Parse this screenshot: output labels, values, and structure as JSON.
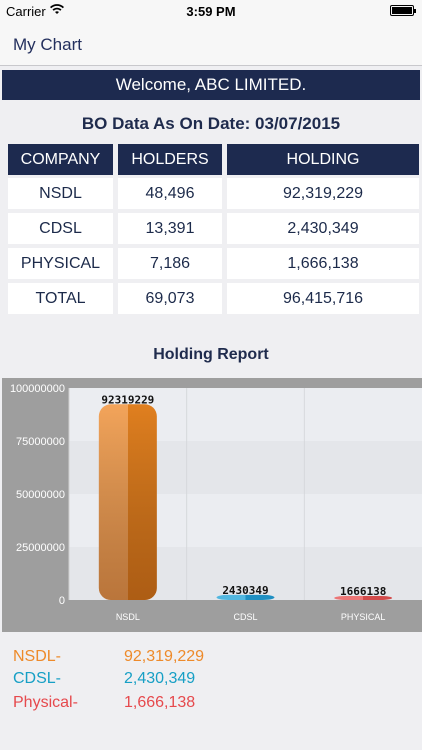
{
  "status_bar": {
    "carrier": "Carrier",
    "time": "3:59 PM"
  },
  "nav": {
    "title": "My Chart"
  },
  "welcome": "Welcome, ABC LIMITED.",
  "bo_date": "BO Data As On Date: 03/07/2015",
  "table": {
    "headers": [
      "COMPANY",
      "HOLDERS",
      "HOLDING"
    ],
    "rows": [
      [
        "NSDL",
        "48,496",
        "92,319,229"
      ],
      [
        "CDSL",
        "13,391",
        "2,430,349"
      ],
      [
        "PHYSICAL",
        "7,186",
        "1,666,138"
      ],
      [
        "TOTAL",
        "69,073",
        "96,415,716"
      ]
    ]
  },
  "report_title": "Holding Report",
  "chart_data": {
    "type": "bar",
    "categories": [
      "NSDL",
      "CDSL",
      "PHYSICAL"
    ],
    "values": [
      92319229,
      2430349,
      1666138
    ],
    "value_labels": [
      "92319229",
      "2430349",
      "1666138"
    ],
    "ylim": [
      0,
      100000000
    ],
    "yticks": [
      0,
      25000000,
      50000000,
      75000000,
      100000000
    ],
    "ytick_labels": [
      "0",
      "25000000",
      "50000000",
      "75000000",
      "100000000"
    ],
    "bar_colors": [
      "#e98a2e",
      "#2e9fd0",
      "#e25b5b"
    ],
    "grid": true,
    "title": "",
    "xlabel": "",
    "ylabel": ""
  },
  "legend": [
    {
      "name": "NSDL-",
      "value": "92,319,229",
      "color": "#ee8a2a"
    },
    {
      "name": "CDSL-",
      "value": "2,430,349",
      "color": "#169fc5"
    },
    {
      "name": "Physical-",
      "value": "1,666,138",
      "color": "#e6494d"
    }
  ]
}
